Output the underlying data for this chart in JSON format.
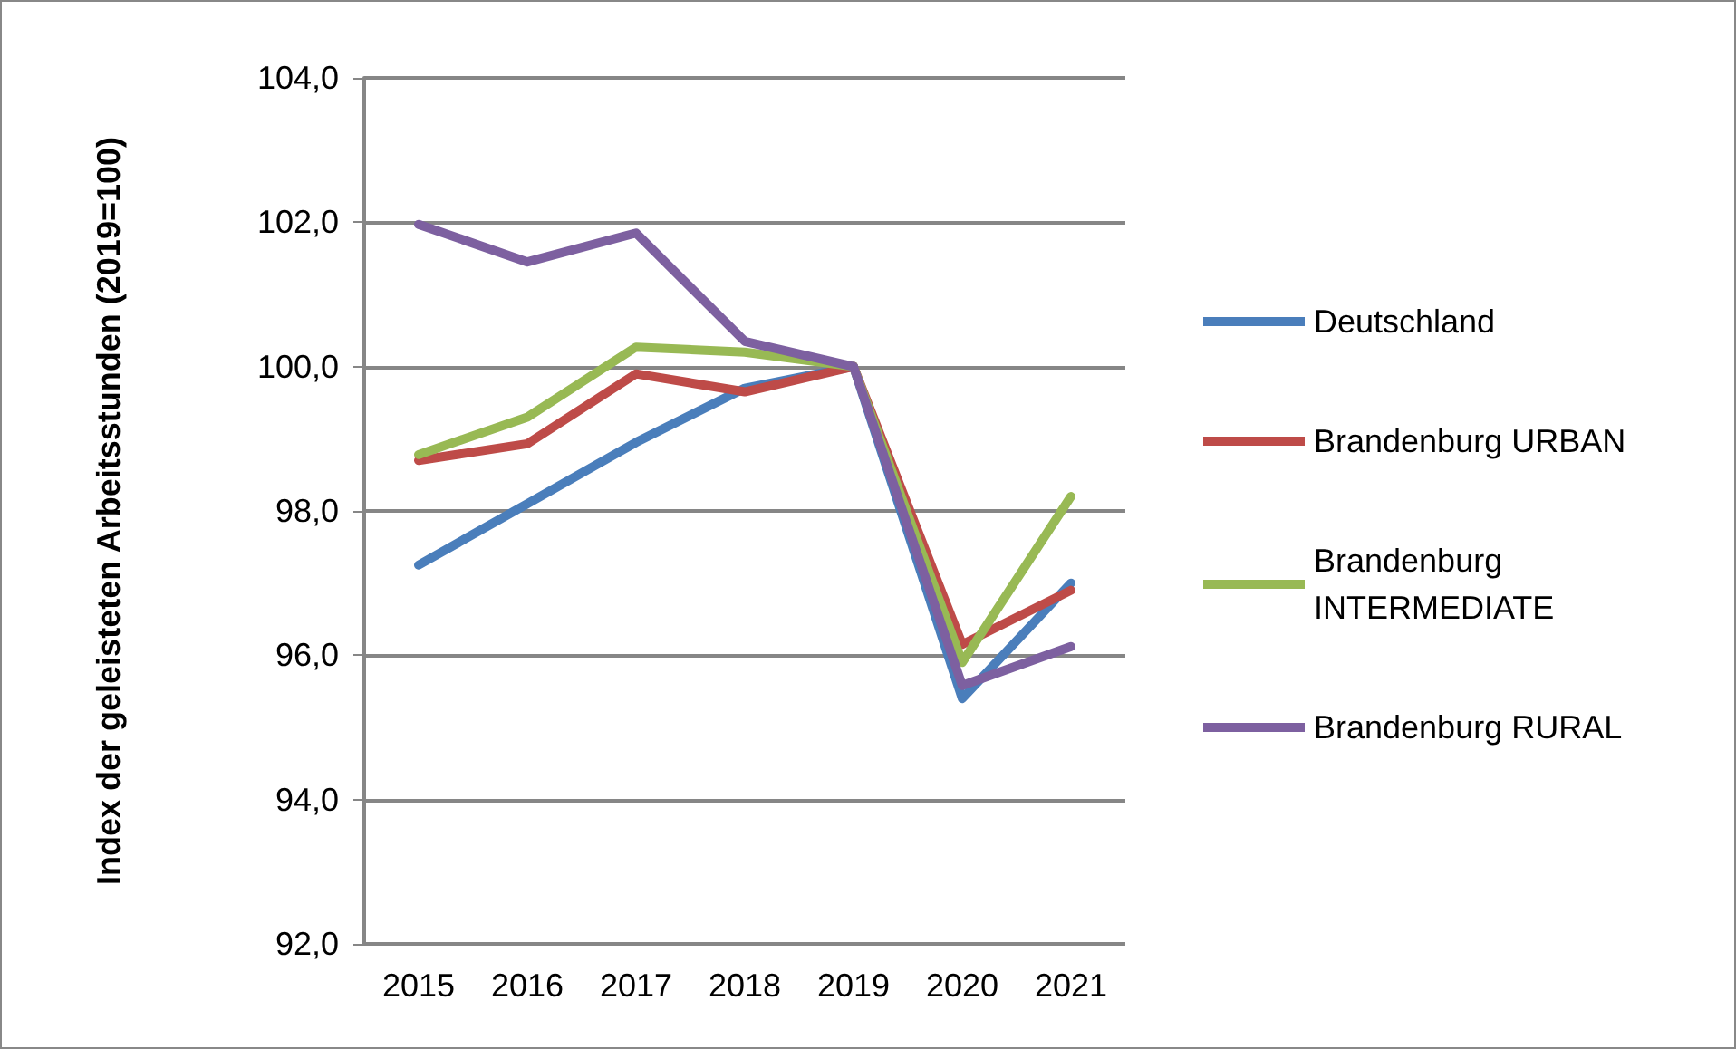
{
  "chart_data": {
    "type": "line",
    "ylabel": "Index der geleisteten Arbeitsstunden (2019=100)",
    "categories": [
      "2015",
      "2016",
      "2017",
      "2018",
      "2019",
      "2020",
      "2021"
    ],
    "series": [
      {
        "name": "Deutschland",
        "color": "#4a7ebb",
        "values": [
          97.25,
          98.1,
          98.95,
          99.7,
          100,
          95.4,
          97.0
        ]
      },
      {
        "name": "Brandenburg URBAN",
        "color": "#be4b48",
        "values": [
          98.7,
          98.93,
          99.9,
          99.65,
          100,
          96.15,
          96.9
        ]
      },
      {
        "name": "Brandenburg INTERMEDIATE",
        "color": "#98b954",
        "values": [
          98.78,
          99.3,
          100.27,
          100.2,
          100,
          95.9,
          98.2
        ]
      },
      {
        "name": "Brandenburg RURAL",
        "color": "#7d60a0",
        "values": [
          101.97,
          101.45,
          101.85,
          100.35,
          100,
          95.58,
          96.12
        ]
      }
    ],
    "ylim": [
      92,
      104
    ],
    "yticks": [
      {
        "value": 92,
        "label": "92,0"
      },
      {
        "value": 94,
        "label": "94,0"
      },
      {
        "value": 96,
        "label": "96,0"
      },
      {
        "value": 98,
        "label": "98,0"
      },
      {
        "value": 100,
        "label": "100,0"
      },
      {
        "value": 102,
        "label": "102,0"
      },
      {
        "value": 104,
        "label": "104,0"
      }
    ],
    "grid": "y",
    "legend": "right",
    "marker": "none",
    "line_style": "solid"
  }
}
